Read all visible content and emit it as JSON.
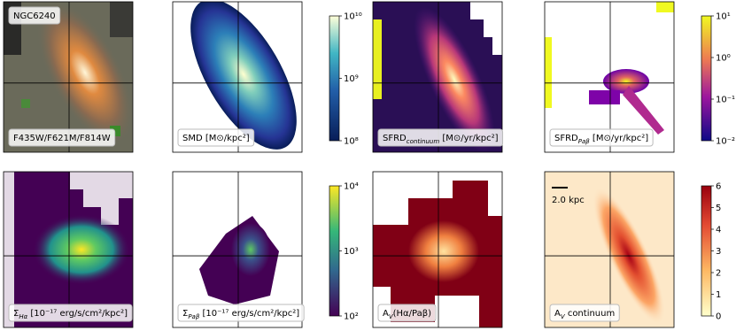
{
  "panels": [
    {
      "label": {
        "text": "F435W/F621M/F814W"
      },
      "name": "NGC6240"
    },
    {
      "label": {
        "text": "SMD [M⊙/kpc²]"
      },
      "colorbar": {
        "ticks": [
          "10¹⁰",
          "10⁹",
          "10⁸"
        ]
      }
    },
    {
      "label": {
        "pre": "SFRD",
        "sub": "continuum",
        "post": " [M⊙/yr/kpc²]"
      }
    },
    {
      "label": {
        "pre": "SFRD",
        "sub": "Paβ",
        "post": " [M⊙/yr/kpc²]"
      },
      "colorbar": {
        "ticks": [
          "10¹",
          "10⁰",
          "10⁻¹",
          "10⁻²"
        ]
      }
    },
    {
      "label": {
        "pre": "Σ",
        "sub": "Hα",
        "post": " [10⁻¹⁷ erg/s/cm²/kpc²]"
      }
    },
    {
      "label": {
        "pre": "Σ",
        "sub": "Paβ",
        "post": " [10⁻¹⁷ erg/s/cm²/kpc²]"
      },
      "colorbar": {
        "ticks": [
          "10⁴",
          "10³",
          "10²"
        ]
      }
    },
    {
      "label": {
        "pre": "A",
        "sub": "V",
        "post": "(Hα/Paβ)"
      }
    },
    {
      "label": {
        "pre": "A",
        "sub": "V",
        "post": " continuum"
      },
      "scalebar": "2.0 kpc",
      "colorbar": {
        "ticks": [
          "6",
          "5",
          "4",
          "3",
          "2",
          "1",
          "0"
        ]
      }
    }
  ]
}
